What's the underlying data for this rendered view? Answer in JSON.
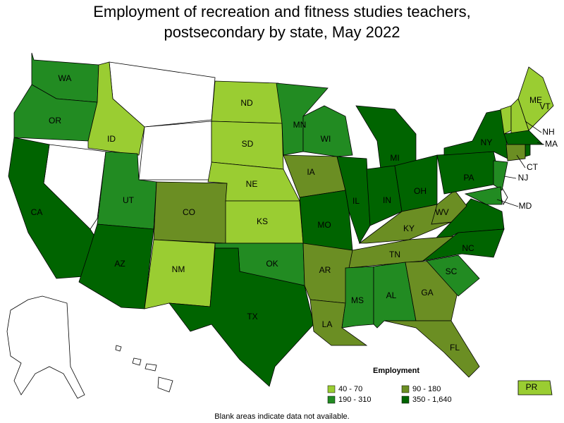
{
  "title": "Employment of recreation and fitness studies teachers, postsecondary by state, May 2022",
  "states": [
    {
      "label": "WA",
      "color": "#228b22"
    },
    {
      "label": "OR",
      "color": "#228b22"
    },
    {
      "label": "CA",
      "color": "#006400"
    },
    {
      "label": "ID",
      "color": "#9acd32"
    },
    {
      "label": "UT",
      "color": "#228b22"
    },
    {
      "label": "AZ",
      "color": "#006400"
    },
    {
      "label": "CO",
      "color": "#6b8e23"
    },
    {
      "label": "NM",
      "color": "#9acd32"
    },
    {
      "label": "ND",
      "color": "#9acd32"
    },
    {
      "label": "SD",
      "color": "#9acd32"
    },
    {
      "label": "NE",
      "color": "#9acd32"
    },
    {
      "label": "KS",
      "color": "#9acd32"
    },
    {
      "label": "OK",
      "color": "#228b22"
    },
    {
      "label": "TX",
      "color": "#006400"
    },
    {
      "label": "MN",
      "color": "#228b22"
    },
    {
      "label": "IA",
      "color": "#6b8e23"
    },
    {
      "label": "MO",
      "color": "#006400"
    },
    {
      "label": "AR",
      "color": "#6b8e23"
    },
    {
      "label": "LA",
      "color": "#6b8e23"
    },
    {
      "label": "WI",
      "color": "#228b22"
    },
    {
      "label": "IL",
      "color": "#006400"
    },
    {
      "label": "MI",
      "color": "#006400"
    },
    {
      "label": "IN",
      "color": "#006400"
    },
    {
      "label": "OH",
      "color": "#006400"
    },
    {
      "label": "KY",
      "color": "#6b8e23"
    },
    {
      "label": "TN",
      "color": "#6b8e23"
    },
    {
      "label": "MS",
      "color": "#228b22"
    },
    {
      "label": "AL",
      "color": "#228b22"
    },
    {
      "label": "GA",
      "color": "#6b8e23"
    },
    {
      "label": "FL",
      "color": "#6b8e23"
    },
    {
      "label": "SC",
      "color": "#228b22"
    },
    {
      "label": "NC",
      "color": "#006400"
    },
    {
      "label": "WV",
      "color": "#6b8e23"
    },
    {
      "label": "PA",
      "color": "#006400"
    },
    {
      "label": "NY",
      "color": "#006400"
    },
    {
      "label": "NJ",
      "color": "#228b22"
    },
    {
      "label": "MD",
      "color": "#228b22"
    },
    {
      "label": "VT",
      "color": "#9acd32"
    },
    {
      "label": "NH",
      "color": "#9acd32"
    },
    {
      "label": "ME",
      "color": "#9acd32"
    },
    {
      "label": "MA",
      "color": "#006400"
    },
    {
      "label": "CT",
      "color": "#6b8e23"
    },
    {
      "label": "PR",
      "color": "#9acd32"
    }
  ],
  "legend": {
    "title": "Employment",
    "items": [
      {
        "label": "40 - 70",
        "color": "#9acd32"
      },
      {
        "label": "90 - 180",
        "color": "#6b8e23"
      },
      {
        "label": "190 - 310",
        "color": "#228b22"
      },
      {
        "label": "350 - 1,640",
        "color": "#006400"
      }
    ]
  },
  "footnote": "Blank areas indicate data not available."
}
